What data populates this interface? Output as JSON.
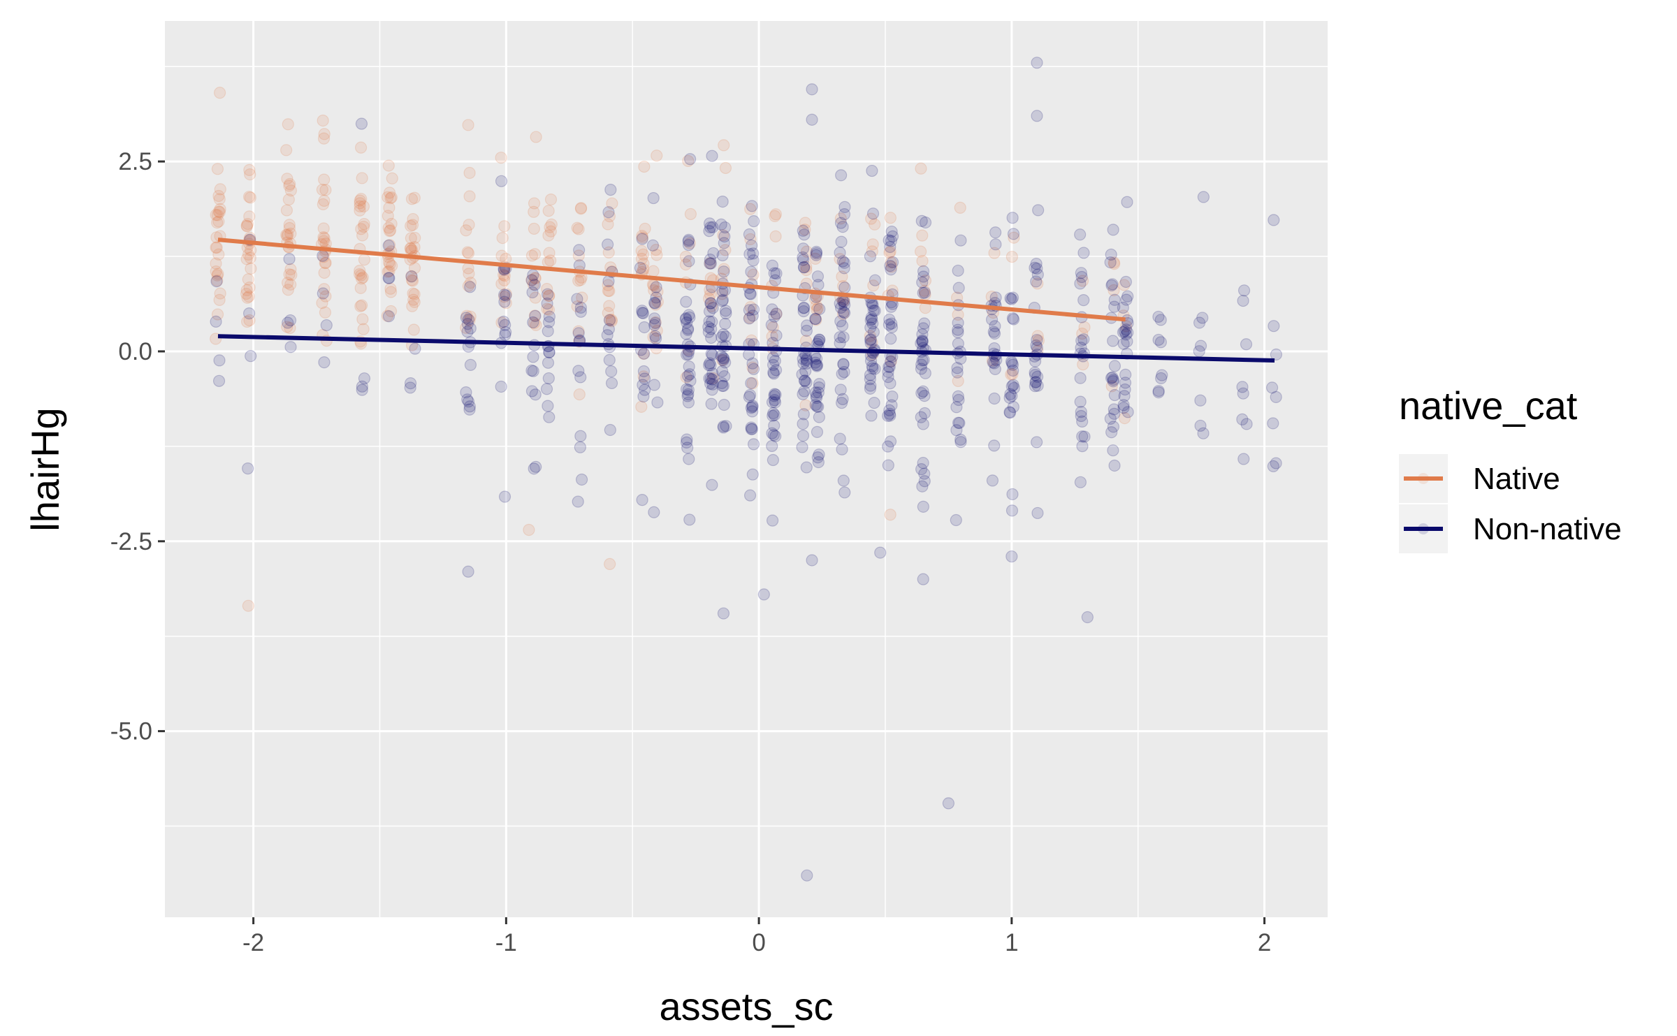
{
  "chart_data": {
    "type": "scatter",
    "xlabel": "assets_sc",
    "ylabel": "lhairHg",
    "xlim": [
      -2.35,
      2.25
    ],
    "ylim": [
      -7.45,
      4.35
    ],
    "x_ticks": [
      -2,
      -1,
      0,
      1,
      2
    ],
    "x_tick_labels": [
      "-2",
      "-1",
      "0",
      "1",
      "2"
    ],
    "y_ticks": [
      2.5,
      0.0,
      -2.5,
      -5.0
    ],
    "y_tick_labels": [
      "2.5",
      "0.0",
      "-2.5",
      "-5.0"
    ],
    "grid": true,
    "legend": {
      "title": "native_cat",
      "position": "right",
      "entries": [
        {
          "label": "Native",
          "color": "#E07B4A"
        },
        {
          "label": "Non-native",
          "color": "#0A0A6B"
        }
      ]
    },
    "x_levels": [
      -2.14,
      -2.02,
      -1.86,
      -1.72,
      -1.57,
      -1.46,
      -1.37,
      -1.15,
      -1.01,
      -0.89,
      -0.83,
      -0.71,
      -0.59,
      -0.46,
      -0.41,
      -0.28,
      -0.19,
      -0.14,
      -0.03,
      0.06,
      0.18,
      0.23,
      0.33,
      0.45,
      0.52,
      0.65,
      0.79,
      0.93,
      1.0,
      1.1,
      1.28,
      1.4,
      1.45,
      1.59,
      1.75,
      1.92,
      2.04
    ],
    "series": [
      {
        "name": "Native",
        "color": "#E07B4A",
        "point_opacity": 0.15,
        "trend_line": {
          "x": [
            -2.14,
            1.45
          ],
          "y": [
            1.47,
            0.42
          ]
        },
        "outliers": [
          {
            "x": -2.02,
            "y": -3.35
          },
          {
            "x": -0.59,
            "y": -2.8
          },
          {
            "x": -0.91,
            "y": -2.35
          },
          {
            "x": 0.52,
            "y": -2.15
          },
          {
            "x": -1.15,
            "y": 2.98
          },
          {
            "x": -1.02,
            "y": 2.55
          }
        ]
      },
      {
        "name": "Non-native",
        "color": "#0A0A6B",
        "point_opacity": 0.15,
        "trend_line": {
          "x": [
            -2.14,
            2.04
          ],
          "y": [
            0.2,
            -0.12
          ]
        },
        "outliers": [
          {
            "x": 1.1,
            "y": 3.8
          },
          {
            "x": 0.21,
            "y": 3.45
          },
          {
            "x": 1.1,
            "y": 3.1
          },
          {
            "x": 0.21,
            "y": 3.05
          },
          {
            "x": 0.75,
            "y": -5.95
          },
          {
            "x": 0.19,
            "y": -6.9
          },
          {
            "x": -0.14,
            "y": -3.45
          },
          {
            "x": 1.3,
            "y": -3.5
          },
          {
            "x": 0.02,
            "y": -3.2
          },
          {
            "x": -1.15,
            "y": -2.9
          },
          {
            "x": 0.65,
            "y": -3.0
          },
          {
            "x": 1.0,
            "y": -2.7
          },
          {
            "x": 0.21,
            "y": -2.75
          },
          {
            "x": 0.48,
            "y": -2.65
          }
        ]
      }
    ]
  }
}
